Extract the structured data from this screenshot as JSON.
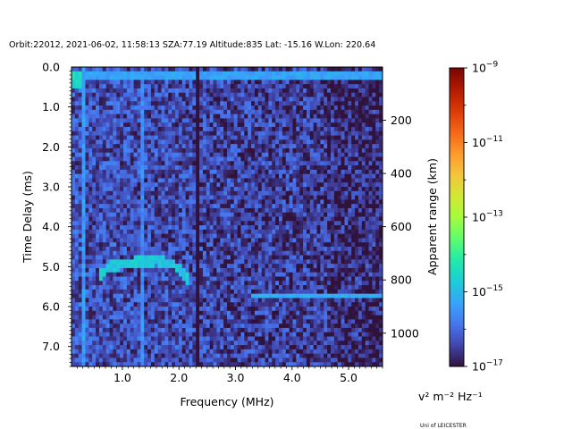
{
  "chart_data": {
    "type": "heatmap",
    "title": "Orbit:22012, 2021-06-02, 11:58:13 SZA:77.19 Altitude:835 Lat: -15.16 W.Lon: 220.64",
    "xlabel": "Frequency (MHz)",
    "ylabel": "Time Delay (ms)",
    "y2label": "Apparent range (km)",
    "xlim": [
      0.1,
      5.6
    ],
    "ylim": [
      7.5,
      0.0
    ],
    "y2lim": [
      1125,
      0
    ],
    "x_ticks": [
      1.0,
      2.0,
      3.0,
      4.0,
      5.0
    ],
    "x_tick_labels": [
      "1.0",
      "2.0",
      "3.0",
      "4.0",
      "5.0"
    ],
    "y_ticks": [
      0.0,
      1.0,
      2.0,
      3.0,
      4.0,
      5.0,
      6.0,
      7.0
    ],
    "y_tick_labels": [
      "0.0",
      "1.0",
      "2.0",
      "3.0",
      "4.0",
      "5.0",
      "6.0",
      "7.0"
    ],
    "y2_ticks": [
      200,
      400,
      600,
      800,
      1000
    ],
    "y2_tick_labels": [
      "200",
      "400",
      "600",
      "800",
      "1000"
    ],
    "colorbar": {
      "scale": "log",
      "colormap": "turbo",
      "range": [
        1e-17,
        1e-09
      ],
      "tick_exponents": [
        -17,
        -15,
        -13,
        -11,
        -9
      ],
      "tick_labels": [
        "10−17",
        "10−15",
        "10−13",
        "10−11",
        "10−9"
      ],
      "unit_label": "v² m⁻² Hz⁻¹"
    },
    "features": [
      {
        "kind": "background-noise",
        "log10_level": -16.6
      },
      {
        "kind": "horizontal-band",
        "delay_ms": 0.2,
        "freq_from_mhz": 0.1,
        "freq_to_mhz": 5.6,
        "log10_level": -15.3
      },
      {
        "kind": "vertical-line",
        "freq_mhz": 0.3,
        "log10_level": -15.4
      },
      {
        "kind": "vertical-line",
        "freq_mhz": 1.35,
        "log10_level": -15.6
      },
      {
        "kind": "dark-vertical-line",
        "freq_mhz": 2.35,
        "log10_level": -17.0
      },
      {
        "kind": "ionospheric-trace",
        "points": [
          [
            0.6,
            5.2
          ],
          [
            0.8,
            5.0
          ],
          [
            1.2,
            4.9
          ],
          [
            1.6,
            4.85
          ],
          [
            1.9,
            4.95
          ],
          [
            2.1,
            5.2
          ],
          [
            2.2,
            5.4
          ]
        ],
        "log10_level": -14.8
      },
      {
        "kind": "horizontal-echo",
        "delay_ms": 5.7,
        "freq_from_mhz": 3.3,
        "freq_to_mhz": 5.6,
        "log10_level": -15.2
      },
      {
        "kind": "low-frequency-patch",
        "freq_from_mhz": 0.1,
        "freq_to_mhz": 0.3,
        "delay_from_ms": 0.1,
        "delay_to_ms": 0.5,
        "log10_level": -14.5
      }
    ]
  },
  "credit": "Uni of LEICESTER"
}
